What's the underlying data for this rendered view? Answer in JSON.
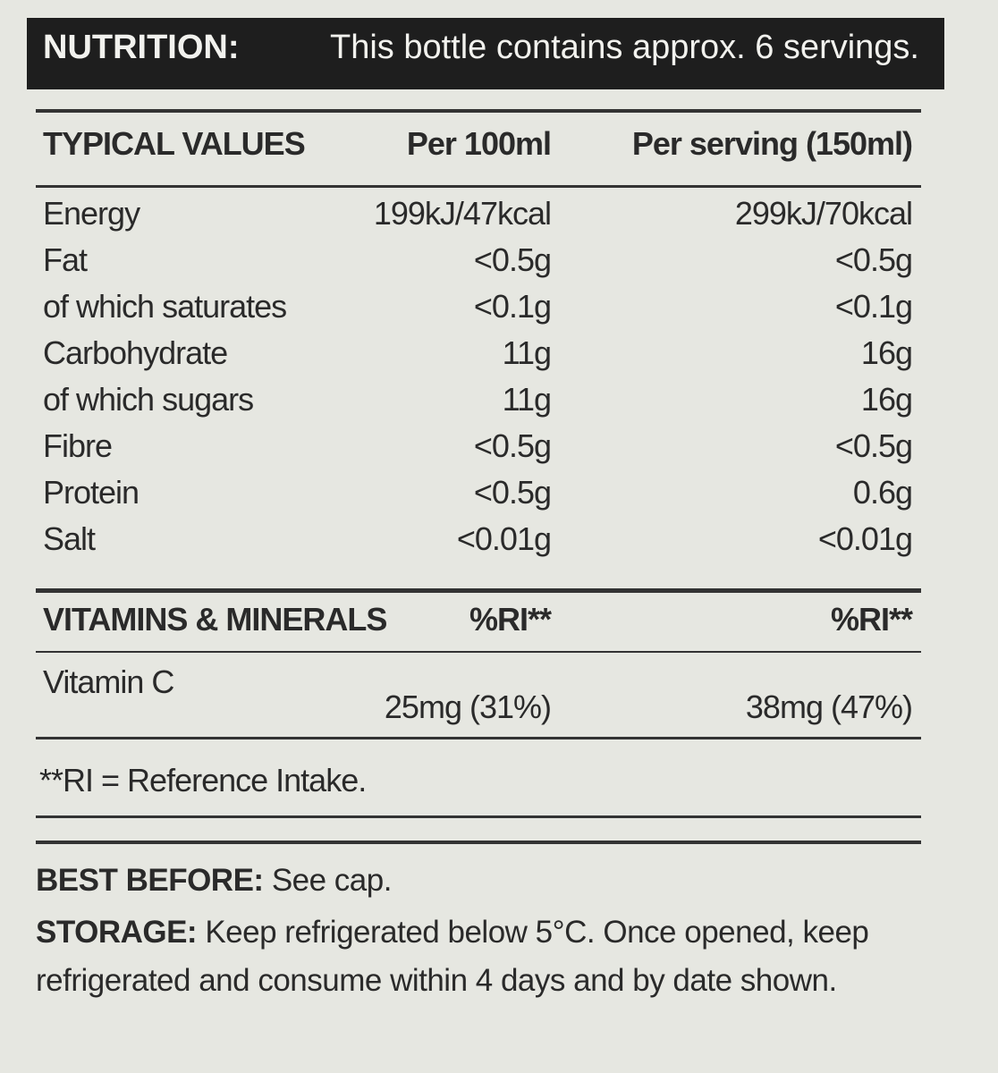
{
  "header": {
    "left": "NUTRITION:",
    "right": "This bottle contains approx. 6 servings."
  },
  "table": {
    "header": [
      "TYPICAL VALUES",
      "Per 100ml",
      "Per serving (150ml)"
    ],
    "rows": [
      [
        "Energy",
        "199kJ/47kcal",
        "299kJ/70kcal"
      ],
      [
        "Fat",
        "<0.5g",
        "<0.5g"
      ],
      [
        "of which saturates",
        "<0.1g",
        "<0.1g"
      ],
      [
        "Carbohydrate",
        "11g",
        "16g"
      ],
      [
        "of which sugars",
        "11g",
        "16g"
      ],
      [
        "Fibre",
        "<0.5g",
        "<0.5g"
      ],
      [
        "Protein",
        "<0.5g",
        "0.6g"
      ],
      [
        "Salt",
        "<0.01g",
        "<0.01g"
      ]
    ]
  },
  "vitamins": {
    "header": [
      "VITAMINS & MINERALS",
      "%RI**",
      "%RI**"
    ],
    "rows": [
      [
        "Vitamin C",
        "25mg (31%)",
        "38mg (47%)"
      ]
    ]
  },
  "footnote": "**RI = Reference Intake.",
  "best_before": {
    "label": "BEST BEFORE:",
    "text": "See cap."
  },
  "storage": {
    "label": "STORAGE:",
    "text": "Keep refrigerated below 5°C. Once opened, keep refrigerated and consume within 4 days and by date shown."
  }
}
